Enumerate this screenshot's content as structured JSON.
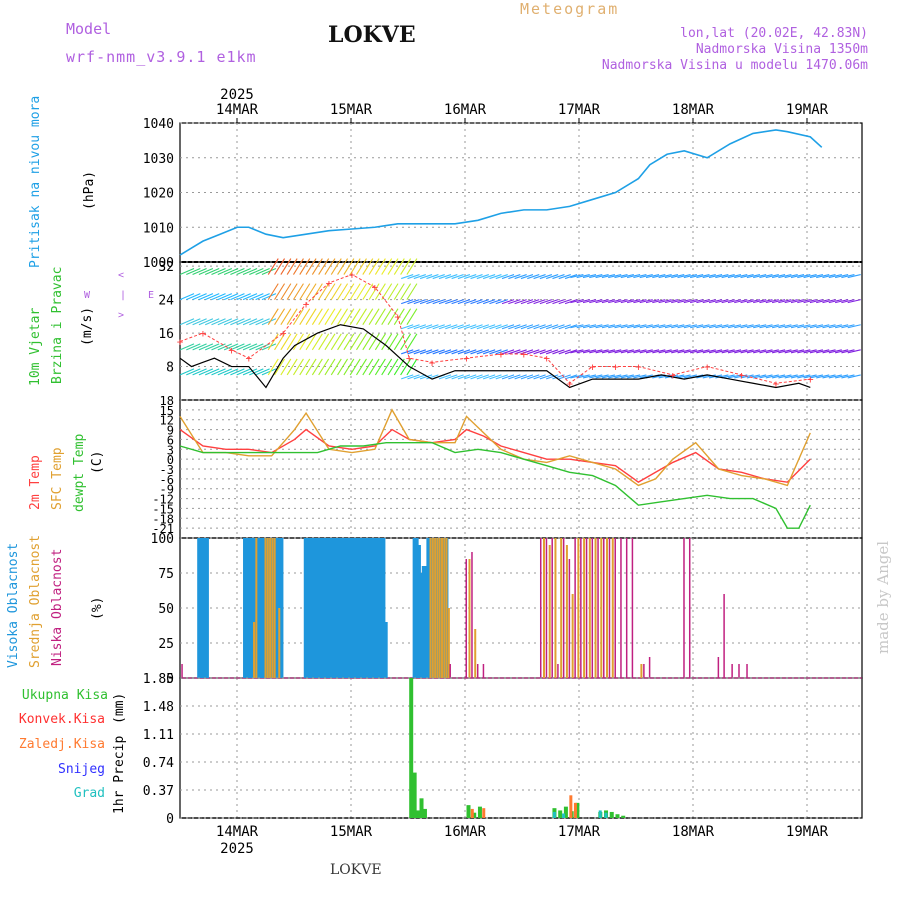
{
  "header": {
    "model_label": "Model",
    "model_name": "wrf-nmm_v3.9.1  e1km",
    "station": "LOKVE",
    "product": "Meteogram",
    "coords": "lon,lat (20.02E, 42.83N)",
    "elevation": "Nadmorska Visina 1350m",
    "model_elevation": "Nadmorska Visina u modelu 1470.06m",
    "watermark": "made by Angel",
    "footer_station": "LOKVE"
  },
  "colors": {
    "pressure": "#1ea0e6",
    "wind_black": "#000000",
    "gust_red": "#ff4040",
    "temp2m": "#ff4040",
    "sfc_temp": "#e0a030",
    "dewpoint": "#30c030",
    "high_cloud": "#1e96dc",
    "mid_cloud": "#e0a030",
    "low_cloud": "#c02080",
    "total_precip": "#30c030",
    "conv_precip": "#ff3030",
    "frozen_precip": "#ff7a30",
    "snow": "#3030ff",
    "graupel": "#20c0c0",
    "legend_purple": "#b060e0",
    "legend_orange": "#e0b070"
  },
  "chart_data": {
    "type": "line",
    "x_axis": {
      "year": "2025",
      "tick_labels": [
        "14MAR",
        "15MAR",
        "16MAR",
        "17MAR",
        "18MAR",
        "19MAR"
      ]
    },
    "panels": [
      {
        "name": "pressure",
        "ylabel_main": "Pritisak na nivou mora",
        "ylabel_unit": "(hPa)",
        "ylim": [
          1000,
          1040
        ],
        "yticks": [
          "1000",
          "1010",
          "1020",
          "1030",
          "1040"
        ],
        "series": [
          {
            "key": "mslp",
            "x_days": [
              0,
              0.1,
              0.2,
              0.35,
              0.5,
              0.6,
              0.75,
              0.9,
              1.0,
              1.1,
              1.3,
              1.5,
              1.7,
              1.9,
              2.0,
              2.2,
              2.4,
              2.6,
              2.8,
              3.0,
              3.2,
              3.4,
              3.6,
              3.8,
              4.0,
              4.1,
              4.25,
              4.4,
              4.6,
              4.8,
              5.0,
              5.2,
              5.3,
              5.5,
              5.6
            ],
            "values": [
              1002,
              1004,
              1006,
              1008,
              1010,
              1010,
              1008,
              1007,
              1007.5,
              1008,
              1009,
              1009.5,
              1010,
              1011,
              1011,
              1011,
              1011,
              1012,
              1014,
              1015,
              1015,
              1016,
              1018,
              1020,
              1024,
              1028,
              1031,
              1032,
              1030,
              1034,
              1037,
              1038,
              1037.5,
              1036,
              1033
            ]
          }
        ]
      },
      {
        "name": "wind",
        "ylabel_main": "10m Vjetar",
        "ylabel_main2": "Brzina i Pravac",
        "ylabel_unit": "(m/s)",
        "direction_key": [
          "W",
          "<",
          "-",
          "|",
          "-",
          ">",
          "E"
        ],
        "ylim": [
          0,
          33
        ],
        "yticks": [
          "8",
          "16",
          "24",
          "32"
        ],
        "series": [
          {
            "key": "wind_speed",
            "x_days": [
              0,
              0.1,
              0.2,
              0.3,
              0.45,
              0.6,
              0.75,
              0.9,
              1.0,
              1.2,
              1.4,
              1.6,
              1.8,
              2.0,
              2.2,
              2.4,
              2.6,
              2.8,
              3.0,
              3.2,
              3.4,
              3.6,
              3.8,
              4.0,
              4.2,
              4.4,
              4.6,
              4.8,
              5.0,
              5.2,
              5.4,
              5.5
            ],
            "values": [
              10,
              8,
              9,
              10,
              8,
              8,
              3,
              10,
              13,
              16,
              18,
              17,
              13,
              8,
              5,
              7,
              7,
              7,
              7,
              7,
              3,
              5,
              5,
              5,
              6,
              5,
              6,
              5,
              4,
              3,
              4,
              3
            ]
          },
          {
            "key": "wind_gust",
            "x_days": [
              0,
              0.2,
              0.45,
              0.6,
              0.9,
              1.1,
              1.3,
              1.5,
              1.7,
              1.9,
              2.0,
              2.2,
              2.5,
              2.8,
              3.0,
              3.2,
              3.4,
              3.6,
              3.8,
              4.0,
              4.3,
              4.6,
              4.9,
              5.2,
              5.5
            ],
            "values": [
              14,
              16,
              12,
              10,
              16,
              23,
              28,
              30,
              27,
              20,
              10,
              9,
              10,
              11,
              11,
              10,
              4,
              8,
              8,
              8,
              6,
              8,
              6,
              4,
              5
            ]
          }
        ]
      },
      {
        "name": "temperature",
        "ylabel_main": "2m Temp",
        "ylabel_main2": "SFC Temp",
        "ylabel_main3": "dewpt Temp",
        "ylabel_unit": "(C)",
        "ylim": [
          -24,
          18
        ],
        "yticks": [
          "18",
          "15",
          "12",
          "9",
          "6",
          "3",
          "0",
          "-3",
          "-6",
          "-9",
          "-12",
          "-15",
          "-18",
          "-21"
        ],
        "series": [
          {
            "key": "t2m",
            "x_days": [
              0,
              0.2,
              0.4,
              0.6,
              0.8,
              1.0,
              1.1,
              1.3,
              1.5,
              1.7,
              1.85,
              2.0,
              2.2,
              2.4,
              2.5,
              2.65,
              2.8,
              3.0,
              3.2,
              3.4,
              3.6,
              3.8,
              4.0,
              4.15,
              4.3,
              4.5,
              4.7,
              4.9,
              5.1,
              5.3,
              5.5
            ],
            "values": [
              9,
              4,
              3,
              3,
              2,
              6,
              9,
              4,
              3,
              4,
              9,
              6,
              5,
              6,
              9,
              7,
              4,
              2,
              0,
              0,
              -1,
              -2,
              -7,
              -4,
              -1,
              2,
              -3,
              -4,
              -6,
              -7,
              0
            ]
          },
          {
            "key": "sfc_temp",
            "x_days": [
              0,
              0.2,
              0.4,
              0.6,
              0.8,
              1.0,
              1.1,
              1.3,
              1.5,
              1.7,
              1.85,
              2.0,
              2.2,
              2.4,
              2.5,
              2.65,
              2.8,
              3.0,
              3.2,
              3.4,
              3.6,
              3.8,
              4.0,
              4.15,
              4.3,
              4.5,
              4.7,
              4.9,
              5.1,
              5.3,
              5.5
            ],
            "values": [
              13,
              2,
              2,
              1,
              1,
              9,
              14,
              3,
              2,
              3,
              15,
              6,
              5,
              5,
              13,
              8,
              3,
              0,
              -1,
              1,
              -1,
              -3,
              -8,
              -6,
              0,
              5,
              -3,
              -5,
              -6,
              -8,
              8
            ]
          },
          {
            "key": "dewpoint",
            "x_days": [
              0,
              0.2,
              0.4,
              0.6,
              0.8,
              1.0,
              1.2,
              1.4,
              1.6,
              1.8,
              2.0,
              2.2,
              2.4,
              2.6,
              2.8,
              3.0,
              3.2,
              3.4,
              3.6,
              3.8,
              4.0,
              4.2,
              4.4,
              4.6,
              4.8,
              5.0,
              5.2,
              5.3,
              5.4,
              5.5
            ],
            "values": [
              4,
              2,
              2,
              2,
              2,
              2,
              2,
              4,
              4,
              5,
              5,
              5,
              2,
              3,
              2,
              0,
              -2,
              -4,
              -5,
              -8,
              -14,
              -13,
              -12,
              -11,
              -12,
              -12,
              -15,
              -21,
              -21,
              -14
            ]
          }
        ]
      },
      {
        "name": "cloud",
        "ylabel_main": "Visoka Oblacnost",
        "ylabel_main2": "Srednja Oblacnost",
        "ylabel_main3": "Niska Oblacnost",
        "ylabel_unit": "(%)",
        "ylim": [
          0,
          100
        ],
        "yticks": [
          "0",
          "25",
          "50",
          "75",
          "100"
        ],
        "series": [
          {
            "key": "high",
            "x_days": [
              0.15,
              0.17,
              0.19,
              0.2,
              0.55,
              0.57,
              0.59,
              0.61,
              0.63,
              0.65,
              0.67,
              0.69,
              0.71,
              0.73,
              0.75,
              0.77,
              0.79,
              0.81,
              0.83,
              0.85,
              1.08,
              1.1,
              1.12,
              1.14,
              1.16,
              1.18,
              1.2,
              1.22,
              1.24,
              1.26,
              1.28,
              1.3,
              1.32,
              1.34,
              1.36,
              1.38,
              1.4,
              1.42,
              1.44,
              1.46,
              1.48,
              1.5,
              1.52,
              1.54,
              1.56,
              1.58,
              1.6,
              1.62,
              1.64,
              1.66,
              1.68,
              1.7,
              1.72,
              1.74,
              1.76,
              2.03,
              2.05,
              2.07,
              2.09,
              2.11,
              2.13,
              2.15,
              2.17,
              2.19,
              2.21,
              2.23,
              2.25,
              2.27,
              2.29
            ],
            "values": [
              100,
              100,
              100,
              100,
              100,
              100,
              100,
              100,
              100,
              100,
              100,
              100,
              100,
              100,
              100,
              100,
              100,
              100,
              100,
              100,
              100,
              100,
              100,
              100,
              100,
              100,
              100,
              100,
              100,
              100,
              100,
              100,
              100,
              100,
              100,
              100,
              100,
              100,
              100,
              100,
              100,
              100,
              100,
              100,
              100,
              100,
              100,
              100,
              100,
              100,
              100,
              100,
              100,
              100,
              40,
              100,
              95,
              75,
              60,
              80,
              40,
              100,
              100,
              100,
              100,
              100,
              100,
              100,
              100
            ]
          },
          {
            "key": "mid",
            "x_days": [
              0.62,
              0.64,
              0.72,
              0.74,
              0.76,
              0.78,
              0.8,
              0.84,
              2.16,
              2.18,
              2.2,
              2.22,
              2.24,
              2.26,
              2.28,
              2.3,
              2.32,
              2.5,
              2.55,
              3.15,
              3.2,
              3.25,
              3.3,
              3.35,
              3.4,
              3.45,
              3.5,
              3.55,
              3.6,
              3.65,
              3.7,
              3.75,
              4.0
            ],
            "values": [
              40,
              100,
              100,
              100,
              100,
              100,
              100,
              50,
              100,
              100,
              100,
              100,
              100,
              100,
              100,
              100,
              50,
              85,
              35,
              100,
              95,
              100,
              100,
              95,
              60,
              100,
              100,
              100,
              100,
              100,
              100,
              100,
              10
            ]
          },
          {
            "key": "low",
            "x_days": [
              0.02,
              2.36,
              2.5,
              2.55,
              2.6,
              2.65,
              3.15,
              3.2,
              3.25,
              3.3,
              3.35,
              3.4,
              3.45,
              3.5,
              3.55,
              3.6,
              3.65,
              3.7,
              3.75,
              3.8,
              3.85,
              3.9,
              3.95,
              4.05,
              4.1,
              4.4,
              4.45,
              4.7,
              4.75,
              4.82,
              4.88,
              4.95
            ],
            "values": [
              10,
              10,
              85,
              90,
              10,
              10,
              100,
              100,
              100,
              10,
              100,
              85,
              100,
              100,
              100,
              100,
              100,
              100,
              100,
              100,
              100,
              100,
              100,
              10,
              15,
              100,
              100,
              15,
              60,
              10,
              10,
              10
            ]
          }
        ]
      },
      {
        "name": "precip",
        "ylabel_main": "1hr Precip",
        "ylabel_unit": "(mm)",
        "legend": [
          "Ukupna Kisa",
          "Konvek.Kisa",
          "Zaledj.Kisa",
          "Snijeg",
          "Grad"
        ],
        "ylim": [
          0,
          1.85
        ],
        "yticks": [
          "0",
          "0.37",
          "0.74",
          "1.11",
          "1.48",
          "1.85"
        ],
        "series": [
          {
            "key": "total",
            "x_days": [
              2.0,
              2.03,
              2.06,
              2.09,
              2.12,
              2.5,
              2.55,
              2.6,
              3.25,
              3.3,
              3.35,
              3.4,
              3.45,
              3.65,
              3.7,
              3.75,
              3.8,
              3.85
            ],
            "values": [
              1.85,
              0.6,
              0.1,
              0.26,
              0.12,
              0.17,
              0.07,
              0.15,
              0.13,
              0.1,
              0.15,
              0.09,
              0.2,
              0.08,
              0.1,
              0.08,
              0.05,
              0.03
            ]
          },
          {
            "key": "frozen",
            "x_days": [
              2.52,
              2.62,
              3.38,
              3.42
            ],
            "values": [
              0.12,
              0.13,
              0.3,
              0.2
            ]
          },
          {
            "key": "graupel",
            "x_days": [
              3.28,
              3.36,
              3.68,
              3.73
            ],
            "values": [
              0.08,
              0.06,
              0.1,
              0.07
            ]
          }
        ]
      }
    ]
  }
}
